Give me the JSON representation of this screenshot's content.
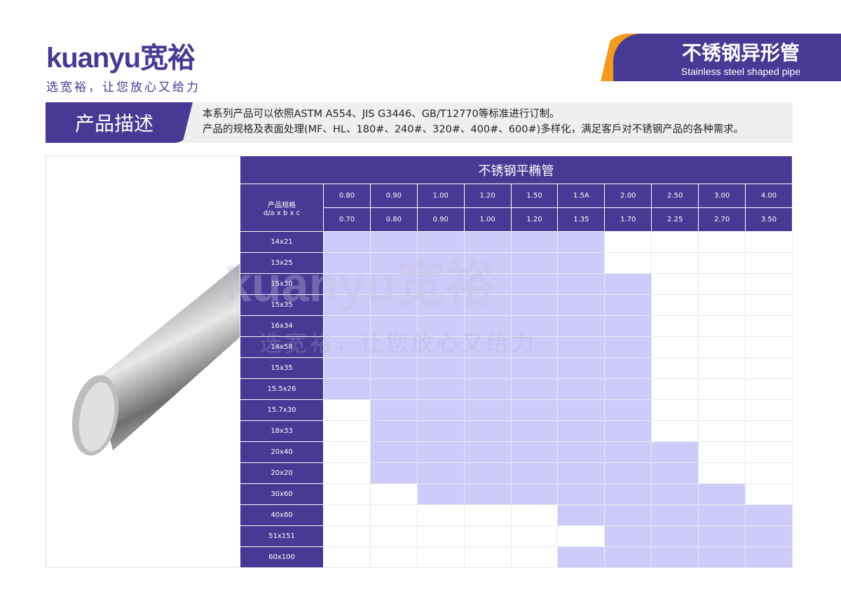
{
  "brand": {
    "logo_text": "kuanyu宽裕",
    "slogan": "选宽裕，让您放心又给力"
  },
  "header": {
    "title_cn": "不锈钢异形管",
    "title_en": "Stainless steel shaped pipe"
  },
  "description": {
    "label": "产品描述",
    "line1": "本系列产品可以依照ASTM A554、JIS G3446、GB/T12770等标准进行订制。",
    "line2": "产品的规格及表面处理(MF、HL、180#、240#、320#、400#、600#)多样化，满足客戶对不锈钢产品的各种需求。"
  },
  "colors": {
    "primary": "#463a94",
    "accent": "#f39a1f",
    "available": "#cdcbfa"
  },
  "table": {
    "title": "不锈钢平椭管",
    "spec_header": "产品规格",
    "spec_sub": "d/a x b x c",
    "thickness_a": [
      "0.80",
      "0.90",
      "1.00",
      "1.20",
      "1.50",
      "1.5A",
      "2.00",
      "2.50",
      "3.00",
      "4.00"
    ],
    "thickness_b": [
      "0.70",
      "0.80",
      "0.90",
      "1.00",
      "1.20",
      "1.35",
      "1.70",
      "2.25",
      "2.70",
      "3.50"
    ],
    "rows": [
      {
        "size": "14x21",
        "available": [
          1,
          1,
          1,
          1,
          1,
          1,
          0,
          0,
          0,
          0
        ]
      },
      {
        "size": "13x25",
        "available": [
          1,
          1,
          1,
          1,
          1,
          1,
          0,
          0,
          0,
          0
        ]
      },
      {
        "size": "15x30",
        "available": [
          1,
          1,
          1,
          1,
          1,
          1,
          1,
          0,
          0,
          0
        ]
      },
      {
        "size": "15x35",
        "available": [
          1,
          1,
          1,
          1,
          1,
          1,
          1,
          0,
          0,
          0
        ]
      },
      {
        "size": "16x34",
        "available": [
          1,
          1,
          1,
          1,
          1,
          1,
          1,
          0,
          0,
          0
        ]
      },
      {
        "size": "14x58",
        "available": [
          1,
          1,
          1,
          1,
          1,
          1,
          1,
          0,
          0,
          0
        ]
      },
      {
        "size": "15x35",
        "available": [
          1,
          1,
          1,
          1,
          1,
          1,
          1,
          0,
          0,
          0
        ]
      },
      {
        "size": "15.5x26",
        "available": [
          1,
          1,
          1,
          1,
          1,
          1,
          1,
          0,
          0,
          0
        ]
      },
      {
        "size": "15.7x30",
        "available": [
          0,
          1,
          1,
          1,
          1,
          1,
          1,
          0,
          0,
          0
        ]
      },
      {
        "size": "18x33",
        "available": [
          0,
          1,
          1,
          1,
          1,
          1,
          1,
          0,
          0,
          0
        ]
      },
      {
        "size": "20x40",
        "available": [
          0,
          1,
          1,
          1,
          1,
          1,
          1,
          1,
          0,
          0
        ]
      },
      {
        "size": "20x20",
        "available": [
          0,
          1,
          1,
          1,
          1,
          1,
          1,
          1,
          0,
          0
        ]
      },
      {
        "size": "30x60",
        "available": [
          0,
          0,
          1,
          1,
          1,
          1,
          1,
          1,
          1,
          0
        ]
      },
      {
        "size": "40x80",
        "available": [
          0,
          0,
          0,
          0,
          0,
          1,
          1,
          1,
          1,
          1
        ]
      },
      {
        "size": "51x151",
        "available": [
          0,
          0,
          0,
          0,
          0,
          0,
          1,
          1,
          1,
          1
        ]
      },
      {
        "size": "60x100",
        "available": [
          0,
          0,
          0,
          0,
          0,
          1,
          1,
          1,
          1,
          1
        ]
      }
    ]
  }
}
